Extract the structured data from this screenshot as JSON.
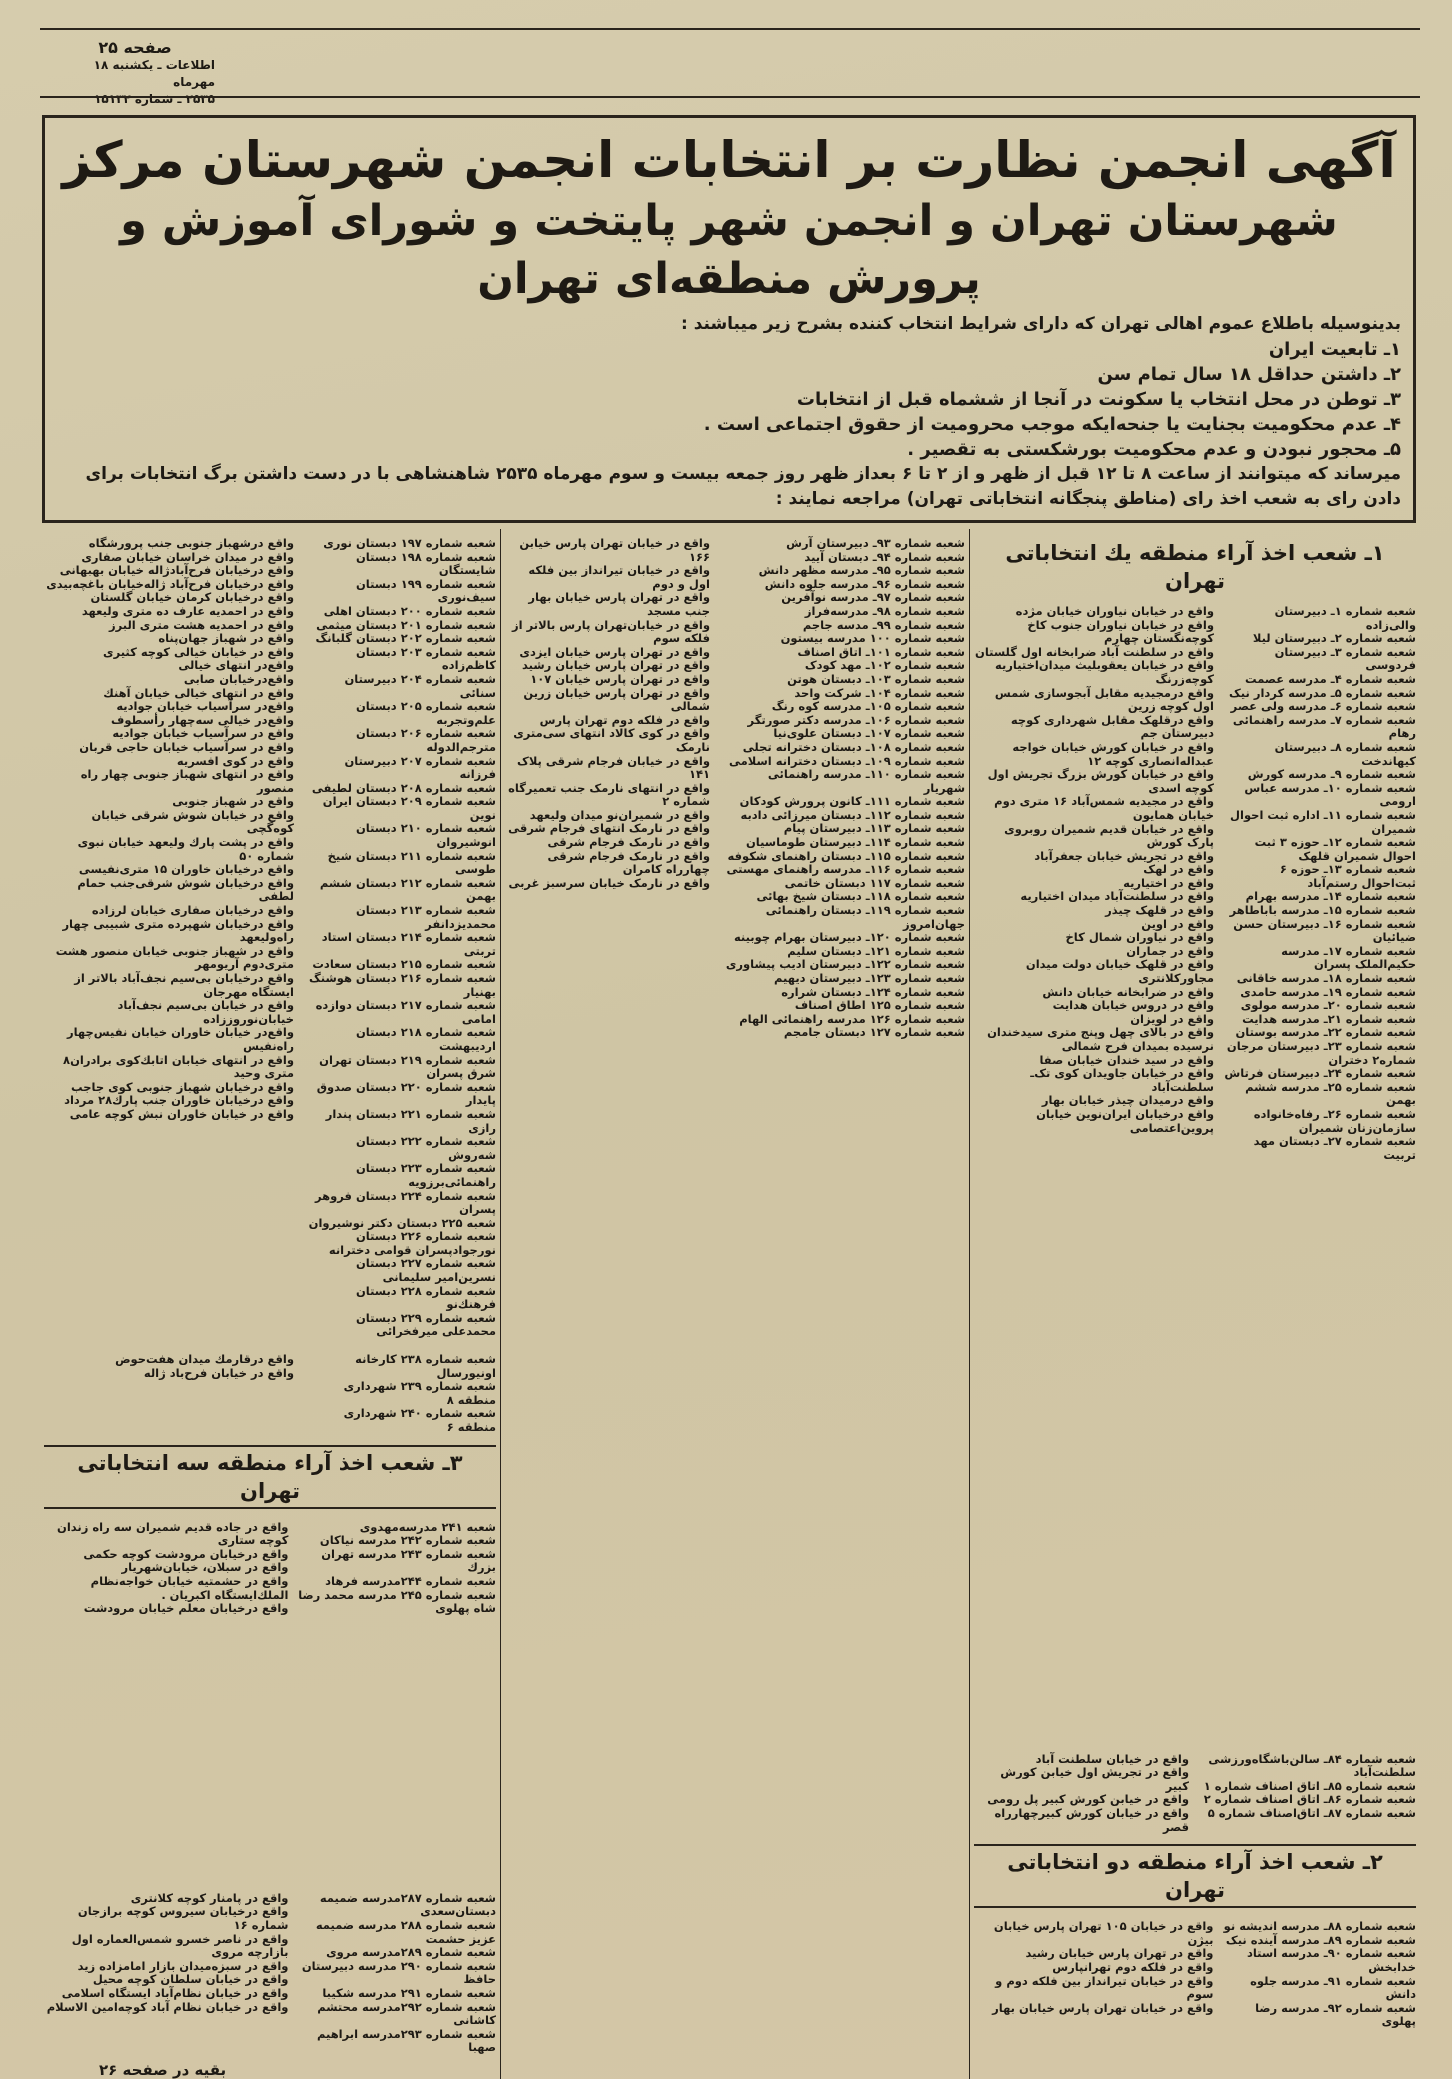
{
  "header": {
    "page": "صفحه ۲۵",
    "paper_date": "اطلاعات ـ یکشنبه ۱۸ مهرماه",
    "issue": "۲۵۳۵ ـ شماره ۱۵۱۳۲"
  },
  "notice": {
    "title_line1": "آگهی انجمن نظارت بر انتخابات انجمن شهرستان مرکز",
    "title_line2": "شهرستان تهران و انجمن شهر پایتخت و شورای آموزش و پرورش منطقه‌ای تهران",
    "intro": "بدینوسیله باطلاع عموم اهالی تهران که دارای شرایط انتخاب کننده بشرح زیر میباشند :",
    "conditions": [
      "۱ـ تابعیت ایران",
      "۲ـ داشتن حداقل ۱۸ سال تمام سن",
      "۳ـ توطن در محل انتخاب یا سکونت در آنجا از ششماه قبل از انتخابات",
      "۴ـ عدم محکومیت بجنایت یا جنحه‌ایکه موجب محرومیت از حقوق اجتماعی است .",
      "۵ـ محجور نبودن و عدم محکومیت بورشکستی به تقصیر ."
    ],
    "closing_line1": "میرساند که میتوانند از ساعت ۸ تا ۱۲ قبل از ظهر و از ۲ تا ۶ بعداز ظهر روز جمعه بیست و سوم مهرماه ۲۵۳۵ شاهنشاهی با در دست داشتن برگ انتخابات برای",
    "closing_line2": "دادن رای به شعب اخذ رای (مناطق پنجگانه انتخاباتی تهران) مراجعه نمایند :"
  },
  "zone1": {
    "heading": "۱ـ شعب اخذ آراء منطقه یك انتخاباتی تهران",
    "names": [
      "شعبه شماره ۱ـ دبیرستان والی‌زاده",
      "شعبه شماره ۲ـ دبیرستان لیلا",
      "شعبه شماره ۳ـ دبیرستان فردوسی",
      "شعبه شماره ۴ـ مدرسه عصمت",
      "شعبه شماره ۵ـ مدرسه کردار نیک",
      "شعبه شماره ۶ـ مدرسه ولی عصر",
      "شعبه شماره ۷ـ مدرسه راهنمائی رهام",
      "شعبه شماره ۸ـ دبیرستان کیهاندخت",
      "شعبه شماره ۹ـ مدرسه کورش",
      "شعبه شماره ۱۰ـ مدرسه عباس ارومی",
      "شعبه شماره ۱۱ـ اداره ثبت احوال شمیران",
      "شعبه شماره ۱۲ـ حوزه ۳ ثبت احوال شمیران قلهک",
      "شعبه شماره ۱۳ـ حوزه ۶ ثبت‌احوال رستم‌آباد",
      "شعبه شماره ۱۴ـ مدرسه بهرام",
      "شعبه شماره ۱۵ـ مدرسه باباطاهر",
      "شعبه شماره ۱۶ـ دبیرستان حسن ضیائیان",
      "شعبه شماره ۱۷ـ مدرسه حکیم‌الملک پسران",
      "شعبه شماره ۱۸ـ مدرسه خاقانی",
      "شعبه شماره ۱۹ـ مدرسه حامدی",
      "شعبه شماره ۲۰ـ مدرسه مولوی",
      "شعبه شماره ۲۱ـ مدرسه هدایت",
      "شعبه شماره ۲۲ـ مدرسه بوستان",
      "شعبه شماره ۲۳ـ دبیرستان مرجان شماره۲ دختران",
      "شعبه شماره ۲۴ـ دبیرستان فرتاش",
      "شعبه شماره ۲۵ـ مدرسه ششم بهمن",
      "شعبه شماره ۲۶ـ رفاه‌خانواده سازمان‌زنان شمیران",
      "شعبه شماره ۲۷ـ دبستان مهد تربیت"
    ],
    "addresses": [
      "واقع در خیابان نیاوران خیابان مژده",
      "واقع در خیابان نیاوران جنوب کاخ کوچه‌نگستان چهارم",
      "واقع در سلطنت آباد ضرابخانه اول گلستان",
      "واقع در خیابان یعقوبلیث میدان‌اختیاریه کوچه‌زرنگ",
      "واقع درمجیدیه مقابل آبجوسازی شمس اول کوچه زرین",
      "واقع درقلهک مقابل شهرداری کوچه دبیرستان جم",
      "واقع در خیابان کورش خیابان خواجه عبداله‌انصاری کوچه ۱۲",
      "واقع در خیابان کورش بزرگ تجریش اول کوچه اسدی",
      "واقع در مجیدیه شمس‌آباد ۱۶ متری دوم خیابان همایون",
      "واقع در خیابان قدیم شمیران روبروی پارک کورش",
      "واقع در تجریش خیابان جعفرآباد",
      "واقع در لهک",
      "واقع در اختیاریه",
      "واقع در سلطنت‌آباد میدان اختیاریه",
      "واقع در قلهک چیذر",
      "واقع در اوین",
      "واقع در نیاوران شمال کاخ",
      "واقع در جماران",
      "واقع در قلهک خیابان دولت میدان مجاورکلانتری",
      "واقع در ضرابخانه خیابان دانش",
      "واقع در دروس خیابان هدایت",
      "واقع در لویزان",
      "واقع در بالای چهل وپنج متری سیدخندان نرسیده بمیدان فرح شمالی",
      "واقع در سید خندان خیابان صفا",
      "واقع در خیابان جاویدان کوی تک‌ـ سلطنت‌آباد",
      "واقع درمیدان چیذر خیابان بهار",
      "واقع درخیابان ایران‌نوین خیابان پروین‌اعتصامی"
    ],
    "tail_names": [
      "شعبه شماره ۸۴ـ سالن‌باشگاه‌ورزشی سلطنت‌آباد",
      "شعبه شماره ۸۵ـ اتاق اصناف شماره ۱",
      "شعبه شماره ۸۶ـ اتاق اصناف شماره ۲",
      "شعبه شماره ۸۷ـ اتاق‌اصناف شماره ۵"
    ],
    "tail_addresses": [
      "واقع در خیابان سلطنت آباد",
      "واقع در تجریش اول خیابن کورش کبیر",
      "واقع در خیابن کورش کبیر پل رومی",
      "واقع در خیابان کورش کبیرچهارراه قصر"
    ]
  },
  "zone2": {
    "heading": "۲ـ شعب اخذ آراء منطقه دو انتخاباتی تهران",
    "names": [
      "شعبه شماره ۸۸ـ مدرسه اندیشه نو",
      "شعبه شماره ۸۹ـ مدرسه آینده نیک",
      "شعبه شماره ۹۰ـ مدرسه استاد خدابخش",
      "شعبه شماره ۹۱ـ مدرسه جلوه دانش",
      "شعبه شماره ۹۲ـ مدرسه رضا پهلوی"
    ],
    "addresses": [
      "واقع در خیابان ۱۰۵ تهران پارس خیابان بیژن",
      "واقع در تهران پارس خیابان رشید",
      "واقع در فلکه دوم تهرانپارس",
      "واقع در خیابان تیرانداز بین فلکه دوم و سوم",
      "واقع در خیابان تهران پارس خیابان بهار"
    ],
    "cont_names": [
      "شعبه شماره ۹۳ـ دبیرستان آرش",
      "شعبه شماره ۹۴ـ دبستان آیید",
      "شعبه شماره ۹۵ـ مدرسه مظهر دانش",
      "شعبه شماره ۹۶ـ مدرسه جلوه دانش",
      "شعبه شماره ۹۷ـ مدرسه نوآفرین",
      "شعبه شماره ۹۸ـ مدرسه‌فراز",
      "شعبه شماره ۹۹ـ مدسه جاجم",
      "شعبه شماره ۱۰۰ مدرسه بیستون",
      "شعبه شماره ۱۰۱ـ اتاق اصناف",
      "شعبه شماره ۱۰۲ـ مهد کودک",
      "شعبه شماره ۱۰۳ـ دبستان هوتن",
      "شعبه شماره ۱۰۴ـ شرکت واحد",
      "شعبه شماره ۱۰۵ـ مدرسه کوه رنگ",
      "شعبه شماره ۱۰۶ـ مدرسه دکتر صورتگر",
      "شعبه شماره ۱۰۷ـ دبستان علوی‌نیا",
      "شعبه شماره ۱۰۸ـ دبستان دخترانه تجلی",
      "شعبه شماره ۱۰۹ـ دبستان دخترانه اسلامی",
      "شعبه شماره ۱۱۰ـ مدرسه راهنمائی شهریار",
      "شعبه شماره ۱۱۱ـ کانون پرورش کودکان",
      "شعبه شماره ۱۱۲ـ دبستان میرزائی دادبه",
      "شعبه شماره ۱۱۳ـ دبیرستان پیام",
      "شعبه شماره ۱۱۴ـ دبیرستان طوماسیان",
      "شعبه شماره ۱۱۵ـ دبستان راهنمای شکوفه",
      "شعبه شماره ۱۱۶ـ مدرسه راهنمای مهستی",
      "شعبه شماره ۱۱۷ دبستان خاتمی",
      "شعبه شماره ۱۱۸ـ دبستان شیخ بهائی",
      "شعبه شماره ۱۱۹ـ دبستان راهنمائی جهان‌امروز",
      "شعبه شماره ۱۲۰ـ دبیرستان بهرام چوبینه",
      "شعبه شماره ۱۲۱ـ دبستان سلیم",
      "شعبه شماره ۱۲۲ـ دبیرستان ادیب پیشاوری",
      "شعبه شماره ۱۲۳ـ دبیرستان دیهیم",
      "شعبه شماره ۱۲۴ـ دبستان شراره",
      "شعبه شماره ۱۲۵ اطاق اصناف",
      "شعبه شماره ۱۲۶ مدرسه راهنمائی الهام",
      "شعبه شماره ۱۲۷ دبستان جامجم"
    ],
    "cont_addresses": [
      "واقع در خیابان تهران پارس خیابن ۱۶۶",
      "واقع در خیابان تیرانداز بین فلکه اول و دوم",
      "واقع در تهران پارس خیابان بهار جنب مسجد",
      "واقع در خیابان‌تهران پارس بالاتر از فلکه سوم",
      "واقع در تهران پارس خیابان ایزدی",
      "واقع در تهران پارس خیابان رشید",
      "واقع در تهران پارس خیابان ۱۰۷",
      "واقع در تهران پارس خیابان زرین شمالی",
      "واقع در فلکه دوم تهران پارس",
      "واقع در کوی کالاد انتهای سی‌متری نارمک",
      "واقع در خیابان فرجام شرقی پلاک ۱۴۱",
      "واقع در انتهای نارمک جنب تعمیرگاه شماره ۲",
      "واقع در شمیران‌نو میدان ولیعهد",
      "واقع در نارمک انتهای فرجام شرقی",
      "واقع در نارمک فرجام شرقی",
      "واقع در نارمک فرجام شرقی چهارراه کامران",
      "واقع در نارمک خیابان سرسبز غربی"
    ]
  },
  "left_block": {
    "names": [
      "شعبه شماره ۱۹۷ دبستان نوری",
      "شعبه شماره ۱۹۸ دبستان شایستگان",
      "شعبه شماره ۱۹۹ دبستان سیف‌نوری",
      "شعبه شماره ۲۰۰ دبستان اهلی",
      "شعبه شماره ۲۰۱ دبستان میثمی",
      "شعبه شماره ۲۰۲ دبستان گلبانگ",
      "شعبه شماره ۲۰۳ دبستان کاظم‌زاده",
      "شعبه شماره ۲۰۴ دبیرستان سنائی",
      "شعبه شماره ۲۰۵ دبستان علم‌وتجربه",
      "شعبه شماره ۲۰۶ دبستان مترجم‌الدوله",
      "شعبه شماره ۲۰۷ دبیرستان فرزانه",
      "شعبه شماره ۲۰۸ دبستان لطیفی",
      "شعبه شماره ۲۰۹ دبستان ایران نوین",
      "شعبه شماره ۲۱۰ دبستان انوشیروان",
      "شعبه شماره ۲۱۱ دبستان شیخ طوسی",
      "شعبه شماره ۲۱۲ دبستان ششم بهمن",
      "شعبه شماره ۲۱۳ دبستان محمدیزدانفر",
      "شعبه شماره ۲۱۴ دبستان استاد تربتی",
      "شعبه شماره ۲۱۵ دبستان سعادت",
      "شعبه شماره ۲۱۶ دبستان هوشنگ بهنیار",
      "شعبه شماره ۲۱۷ دبستان دوازده امامی",
      "شعبه شماره ۲۱۸ دبستان اردیبهشت",
      "شعبه شماره ۲۱۹ دبستان تهران شرق پسران",
      "شعبه شماره ۲۲۰ دبستان صدوق پایدار",
      "شعبه شماره ۲۲۱ دبستان پندار رازی",
      "شعبه شماره ۲۲۲ دبستان شه‌روش",
      "شعبه شماره ۲۲۳ دبستان راهنمائی‌برزویه",
      "شعبه شماره ۲۲۴ دبستان فروهر پسران",
      "شعبه ۲۲۵ دبستان دکتر نوشیروان",
      "شعبه شماره ۲۲۶ دبستان نورجواد‌پسران قوامی دخترانه",
      "شعبه شماره ۲۲۷ دبستان نسرین‌امیر سلیمانی",
      "شعبه شماره ۲۲۸ دبستان فرهنك‌نو",
      "شعبه شماره ۲۲۹ دبستان محمدعلی میرفخرائی"
    ],
    "pre_zone3_names": [
      "شعبه شماره ۲۳۸ کارخانه اونیورسال",
      "شعبه شماره ۲۳۹ شهرداری منطقه ۸",
      "شعبه شماره ۲۴۰ شهرداری منطقه ۶"
    ],
    "pre_zone3_addresses": [
      "واقع درقارمك میدان هفت‌حوض",
      "واقع در خیابان فرح‌باد ژاله"
    ],
    "addresses": [
      "واقع درشهباز جنوبی جنب پرورشگاه",
      "واقع در میدان خراسان خیابان صفاری",
      "واقع درخیابان فرح‌آباد‌ژاله خیابان بهبهانی",
      "واقع درخیابان فرح‌آباد ژاله‌خیابان باغچه‌بیدی",
      "واقع درخیابان کرمان خیابان گلستان",
      "واقع در احمدیه عارف ده متری ولیعهد",
      "واقع در احمدیه هشت متری البرز",
      "واقع در شهباز جهان‌پناه",
      "واقع در خیابان خیالی کوچه کثیری",
      "واقع‌در انتهای خیالی",
      "واقع‌درخیابان صابی",
      "واقع در انتهای خیالی خیابان آهنك",
      "واقع‌در سرآسیاب خیابان جوادیه",
      "واقع‌در خیالی سه‌چهار رأسطوف",
      "واقع در سرآسیاب خیابان جوادیه",
      "واقع در سرآسیاب خیابان حاجی قربان",
      "واقع در کوی افسریه",
      "واقع در انتهای شهباز جنوبی چهار راه منصور",
      "واقع در شهباز جنوبی",
      "واقع در خیابان شوش شرقی خیابان کوه‌گچی",
      "واقع در پشت پارك ولیعهد خیابان نبوی شماره ۵۰",
      "واقع درخیابان خاوران ۱۵ متری‌نفیسی",
      "واقع درخیابان شوش شرقی‌جنب حمام لطفی",
      "واقع درخیابان صفاری خیابان لرزاده",
      "واقع درخیابان شهپرده متری شبیبی چهار راه‌ولیعهد",
      "واقع در شهباز جنوبی خیابان منصور هشت متری‌دوم آریومهر",
      "واقع درخیابان بی‌سیم نجف‌آباد بالاتر از ایستگاه مهرجان",
      "واقع در خیابان بی‌سیم نجف‌آباد خیابان‌نوروززاده",
      "واقع‌در خیابان خاوران خیابان نفیس‌چهار راه‌نفیس",
      "واقع در انتهای خیابان اتابك‌کوی برادران۸ متری وحید",
      "واقع درخیابان شهباز جنوبی کوی جاجب",
      "واقع درخیابان خاوران جنب پارك۲۸ مرداد",
      "واقع در خیابان خاوران نبش کوچه عامی"
    ],
    "zone3_heading": "۳ـ شعب اخذ آراء منطقه سه انتخاباتی تهران",
    "zone3_names": [
      "شعبه ۲۴۱ مدرسه‌مهدوی",
      "شعبه شماره ۲۴۲ مدرسه نیاکان",
      "شعبه شماره ۲۴۳ مدرسه تهران بزرك",
      "شعبه شماره ۲۴۴مدرسه فرهاد",
      "شعبه شماره ۲۴۵ مدرسه محمد رضا شاه پهلوی"
    ],
    "zone3_addresses": [
      "واقع در جاده قدیم شمیران سه راه زندان کوچه ستاری",
      "واقع درخیابان مرودشت کوچه حکمی",
      "واقع در سبلان، خیابان‌شهریار",
      "واقع در حشمتیه خیابان خواجه‌نظام الملك‌ایستگاه اکبریان .",
      "واقع درخیابان معلم خیابان مرودشت"
    ],
    "tail_names": [
      "شعبه شماره ۲۸۷مدرسه ضمیمه دبستان‌سعدی",
      "شعبه شماره ۲۸۸ مدرسه ضمیمه عزیز حشمت",
      "شعبه شماره ۲۸۹مدرسه مروی",
      "شعبه شماره ۲۹۰ مدرسه دبیرستان حافظ",
      "شعبه شماره ۲۹۱ مدرسه شکیبا",
      "شعبه شماره ۲۹۲مدرسه محتشم کاشانی",
      "شعبه شماره ۲۹۳مدرسه ابراهیم صهبا"
    ],
    "tail_addresses": [
      "واقع در پامنار کوچه کلانتری",
      "واقع درخیابان سیروس کوچه برازجان شماره ۱۶",
      "واقع در ناصر خسرو شمس‌العماره اول بازارچه مروی",
      "واقع در سبزه‌میدان بازار امامزاده زید",
      "واقع در خیابان سلطان کوچه محیل",
      "واقع در خیابان نظام‌آباد ایستگاه اسلامی",
      "واقع در خیابان نظام آباد کوچه‌امین الاسلام"
    ],
    "continued": "بقیه در صفحه ۲۶"
  }
}
